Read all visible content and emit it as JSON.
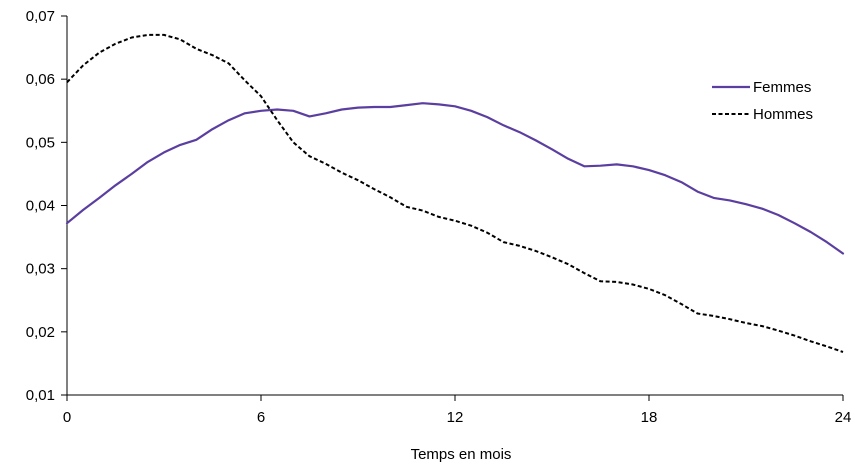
{
  "chart_data": {
    "type": "line",
    "title": "",
    "xlabel": "Temps en mois",
    "ylabel": "",
    "xlim": [
      0,
      24
    ],
    "ylim": [
      0.01,
      0.07
    ],
    "x_ticks": [
      0,
      6,
      12,
      18,
      24
    ],
    "x_tick_labels": [
      "0",
      "6",
      "12",
      "18",
      "24"
    ],
    "y_ticks": [
      0.01,
      0.02,
      0.03,
      0.04,
      0.05,
      0.06,
      0.07
    ],
    "y_tick_labels": [
      "0,01",
      "0,02",
      "0,03",
      "0,04",
      "0,05",
      "0,06",
      "0,07"
    ],
    "grid": false,
    "legend_position": "right",
    "series": [
      {
        "name": "Femmes",
        "color": "#5b3fa0",
        "style": "solid",
        "x": [
          0,
          0.5,
          1,
          1.5,
          2,
          2.5,
          3,
          3.5,
          4,
          4.5,
          5,
          5.5,
          6,
          6.5,
          7,
          7.5,
          8,
          8.5,
          9,
          9.5,
          10,
          10.5,
          11,
          11.5,
          12,
          12.5,
          13,
          13.5,
          14,
          14.5,
          15,
          15.5,
          16,
          16.5,
          17,
          17.5,
          18,
          18.5,
          19,
          19.5,
          20,
          20.5,
          21,
          21.5,
          22,
          22.5,
          23,
          23.5,
          24
        ],
        "values": [
          0.0372,
          0.0393,
          0.0412,
          0.0432,
          0.045,
          0.0469,
          0.0484,
          0.0496,
          0.0504,
          0.0521,
          0.0535,
          0.0546,
          0.055,
          0.0552,
          0.055,
          0.0541,
          0.0546,
          0.0552,
          0.0555,
          0.0556,
          0.0556,
          0.0559,
          0.0562,
          0.056,
          0.0557,
          0.055,
          0.054,
          0.0527,
          0.0516,
          0.0503,
          0.0489,
          0.0474,
          0.0462,
          0.0463,
          0.0465,
          0.0462,
          0.0456,
          0.0448,
          0.0437,
          0.0422,
          0.0412,
          0.0408,
          0.0402,
          0.0395,
          0.0385,
          0.0372,
          0.0358,
          0.0342,
          0.0324
        ]
      },
      {
        "name": "Hommes",
        "color": "#000000",
        "style": "dashed",
        "x": [
          0,
          0.5,
          1,
          1.5,
          2,
          2.5,
          3,
          3.5,
          4,
          4.5,
          5,
          5.5,
          6,
          6.5,
          7,
          7.5,
          8,
          8.5,
          9,
          9.5,
          10,
          10.5,
          11,
          11.5,
          12,
          12.5,
          13,
          13.5,
          14,
          14.5,
          15,
          15.5,
          16,
          16.5,
          17,
          17.5,
          18,
          18.5,
          19,
          19.5,
          20,
          20.5,
          21,
          21.5,
          22,
          22.5,
          23,
          23.5,
          24
        ],
        "values": [
          0.0595,
          0.0622,
          0.0642,
          0.0656,
          0.0666,
          0.067,
          0.067,
          0.0663,
          0.0648,
          0.0638,
          0.0625,
          0.0598,
          0.0573,
          0.0535,
          0.05,
          0.0478,
          0.0466,
          0.0452,
          0.044,
          0.0426,
          0.0413,
          0.0398,
          0.0392,
          0.0382,
          0.0376,
          0.0368,
          0.0357,
          0.0342,
          0.0336,
          0.0328,
          0.0318,
          0.0307,
          0.0293,
          0.028,
          0.0279,
          0.0275,
          0.0268,
          0.0258,
          0.0244,
          0.0229,
          0.0225,
          0.022,
          0.0214,
          0.0209,
          0.0202,
          0.0194,
          0.0185,
          0.0177,
          0.0168
        ]
      }
    ]
  }
}
